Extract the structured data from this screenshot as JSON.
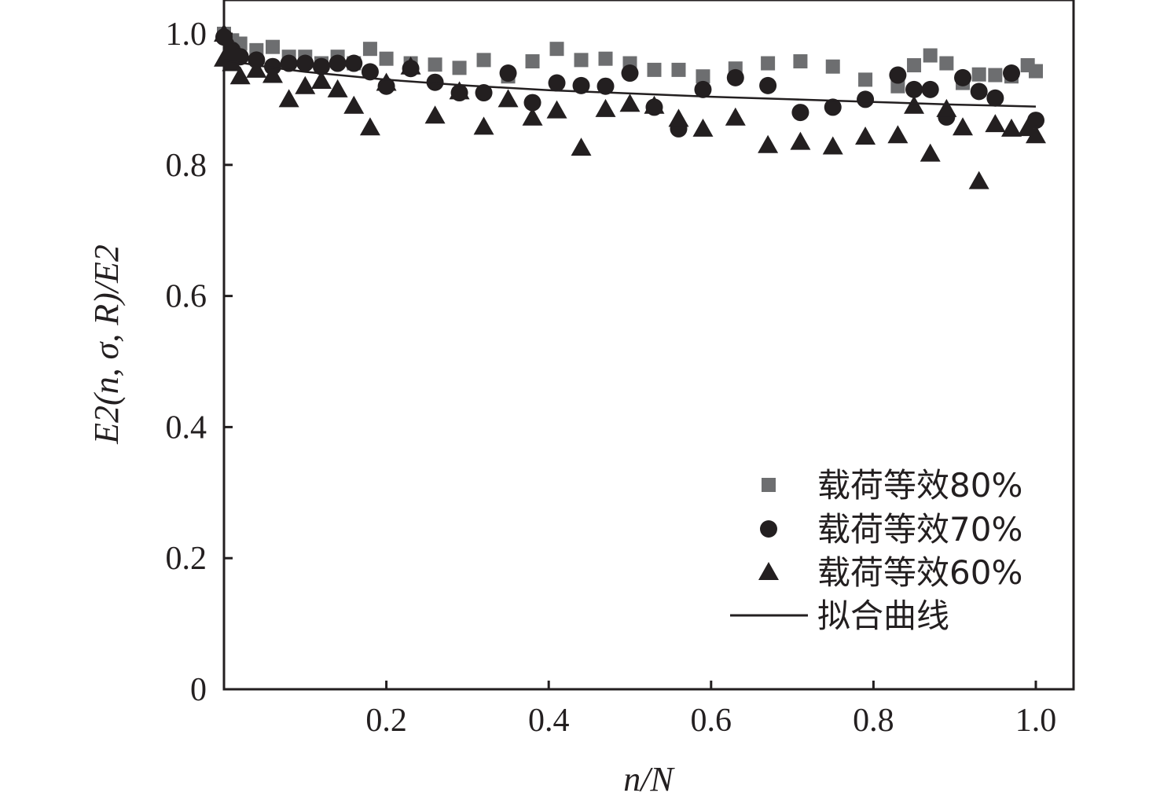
{
  "chart_data": {
    "type": "scatter",
    "xlabel": "n/N",
    "ylabel": "E2(n, σ, R)/E2",
    "xlim": [
      0,
      1.05
    ],
    "ylim": [
      0,
      1.05
    ],
    "x_ticks": [
      0.2,
      0.4,
      0.6,
      0.8,
      1.0
    ],
    "x_tick_labels": [
      "0.2",
      "0.4",
      "0.6",
      "0.8",
      "1.0"
    ],
    "y_ticks": [
      0,
      0.2,
      0.4,
      0.6,
      0.8,
      1.0
    ],
    "y_tick_labels": [
      "0",
      "0.2",
      "0.4",
      "0.6",
      "0.8",
      "1.0"
    ],
    "grid": false,
    "legend_position": "bottom-right",
    "series": [
      {
        "name": "载荷等效80%",
        "marker": "square",
        "color": "#6d6e70",
        "points": [
          [
            0.0,
            1.0
          ],
          [
            0.01,
            0.99
          ],
          [
            0.02,
            0.985
          ],
          [
            0.04,
            0.975
          ],
          [
            0.06,
            0.98
          ],
          [
            0.08,
            0.965
          ],
          [
            0.1,
            0.965
          ],
          [
            0.12,
            0.955
          ],
          [
            0.14,
            0.965
          ],
          [
            0.16,
            0.955
          ],
          [
            0.18,
            0.977
          ],
          [
            0.2,
            0.962
          ],
          [
            0.23,
            0.955
          ],
          [
            0.26,
            0.953
          ],
          [
            0.29,
            0.948
          ],
          [
            0.32,
            0.96
          ],
          [
            0.35,
            0.935
          ],
          [
            0.38,
            0.958
          ],
          [
            0.41,
            0.977
          ],
          [
            0.44,
            0.96
          ],
          [
            0.47,
            0.962
          ],
          [
            0.5,
            0.955
          ],
          [
            0.53,
            0.945
          ],
          [
            0.56,
            0.945
          ],
          [
            0.59,
            0.935
          ],
          [
            0.63,
            0.947
          ],
          [
            0.67,
            0.955
          ],
          [
            0.71,
            0.958
          ],
          [
            0.75,
            0.95
          ],
          [
            0.79,
            0.93
          ],
          [
            0.83,
            0.92
          ],
          [
            0.85,
            0.952
          ],
          [
            0.87,
            0.967
          ],
          [
            0.89,
            0.955
          ],
          [
            0.91,
            0.925
          ],
          [
            0.93,
            0.938
          ],
          [
            0.95,
            0.937
          ],
          [
            0.97,
            0.935
          ],
          [
            0.99,
            0.952
          ],
          [
            1.0,
            0.943
          ]
        ]
      },
      {
        "name": "载荷等效70%",
        "marker": "circle",
        "color": "#231f20",
        "points": [
          [
            0.0,
            0.995
          ],
          [
            0.01,
            0.975
          ],
          [
            0.02,
            0.965
          ],
          [
            0.04,
            0.96
          ],
          [
            0.06,
            0.95
          ],
          [
            0.08,
            0.955
          ],
          [
            0.1,
            0.955
          ],
          [
            0.12,
            0.95
          ],
          [
            0.14,
            0.955
          ],
          [
            0.16,
            0.955
          ],
          [
            0.18,
            0.942
          ],
          [
            0.2,
            0.92
          ],
          [
            0.23,
            0.947
          ],
          [
            0.26,
            0.926
          ],
          [
            0.29,
            0.91
          ],
          [
            0.32,
            0.91
          ],
          [
            0.35,
            0.94
          ],
          [
            0.38,
            0.895
          ],
          [
            0.41,
            0.925
          ],
          [
            0.44,
            0.921
          ],
          [
            0.47,
            0.92
          ],
          [
            0.5,
            0.94
          ],
          [
            0.53,
            0.888
          ],
          [
            0.56,
            0.855
          ],
          [
            0.59,
            0.915
          ],
          [
            0.63,
            0.933
          ],
          [
            0.67,
            0.921
          ],
          [
            0.71,
            0.88
          ],
          [
            0.75,
            0.888
          ],
          [
            0.79,
            0.9
          ],
          [
            0.83,
            0.937
          ],
          [
            0.85,
            0.915
          ],
          [
            0.87,
            0.915
          ],
          [
            0.89,
            0.873
          ],
          [
            0.91,
            0.933
          ],
          [
            0.93,
            0.912
          ],
          [
            0.95,
            0.902
          ],
          [
            0.97,
            0.94
          ],
          [
            1.0,
            0.868
          ]
        ]
      },
      {
        "name": "载荷等效60%",
        "marker": "triangle",
        "color": "#231f20",
        "points": [
          [
            0.0,
            1.0
          ],
          [
            0.0,
            0.962
          ],
          [
            0.01,
            0.955
          ],
          [
            0.02,
            0.935
          ],
          [
            0.04,
            0.945
          ],
          [
            0.06,
            0.937
          ],
          [
            0.08,
            0.9
          ],
          [
            0.1,
            0.92
          ],
          [
            0.12,
            0.928
          ],
          [
            0.14,
            0.915
          ],
          [
            0.16,
            0.89
          ],
          [
            0.18,
            0.857
          ],
          [
            0.2,
            0.925
          ],
          [
            0.23,
            0.95
          ],
          [
            0.26,
            0.875
          ],
          [
            0.29,
            0.912
          ],
          [
            0.32,
            0.858
          ],
          [
            0.35,
            0.9
          ],
          [
            0.38,
            0.872
          ],
          [
            0.41,
            0.883
          ],
          [
            0.44,
            0.826
          ],
          [
            0.47,
            0.885
          ],
          [
            0.5,
            0.893
          ],
          [
            0.53,
            0.89
          ],
          [
            0.56,
            0.87
          ],
          [
            0.59,
            0.855
          ],
          [
            0.63,
            0.872
          ],
          [
            0.67,
            0.83
          ],
          [
            0.71,
            0.835
          ],
          [
            0.75,
            0.828
          ],
          [
            0.79,
            0.843
          ],
          [
            0.83,
            0.845
          ],
          [
            0.85,
            0.89
          ],
          [
            0.87,
            0.817
          ],
          [
            0.89,
            0.885
          ],
          [
            0.91,
            0.857
          ],
          [
            0.93,
            0.775
          ],
          [
            0.95,
            0.862
          ],
          [
            0.97,
            0.855
          ],
          [
            0.99,
            0.856
          ],
          [
            1.0,
            0.845
          ]
        ]
      },
      {
        "name": "拟合曲线",
        "marker": "line",
        "color": "#231f20",
        "points": [
          [
            0.0,
            0.96
          ],
          [
            0.05,
            0.95
          ],
          [
            0.1,
            0.942
          ],
          [
            0.15,
            0.936
          ],
          [
            0.2,
            0.93
          ],
          [
            0.3,
            0.921
          ],
          [
            0.4,
            0.914
          ],
          [
            0.5,
            0.909
          ],
          [
            0.6,
            0.904
          ],
          [
            0.7,
            0.9
          ],
          [
            0.8,
            0.896
          ],
          [
            0.9,
            0.892
          ],
          [
            1.0,
            0.889
          ]
        ]
      }
    ]
  }
}
